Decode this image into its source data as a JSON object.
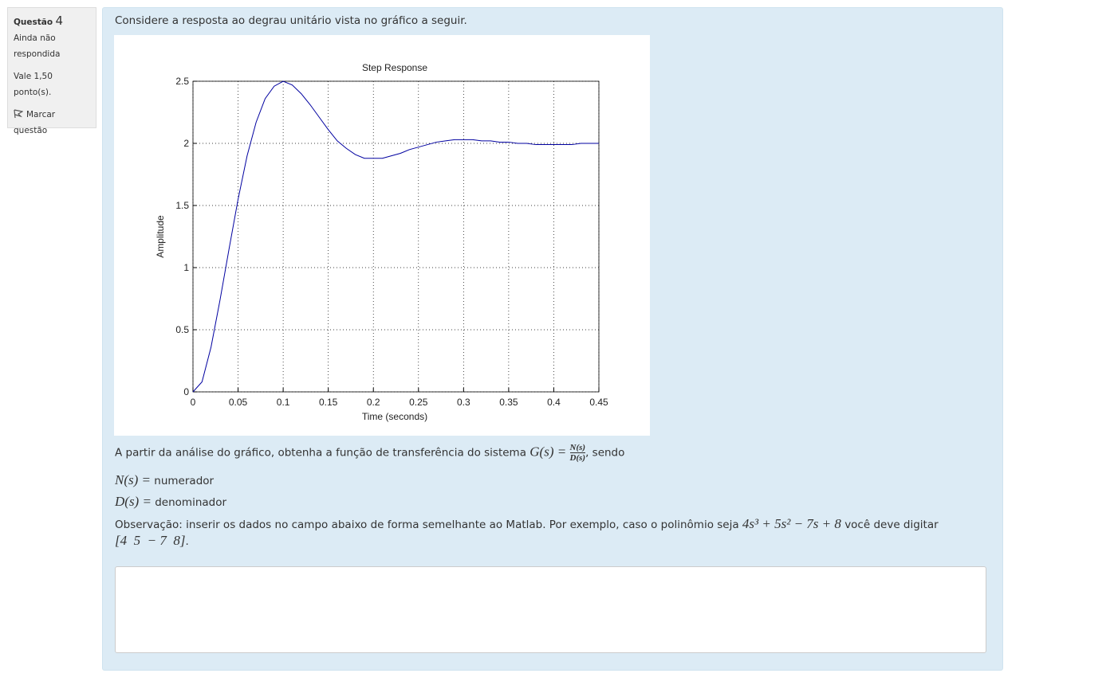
{
  "sidebar": {
    "question_label": "Questão",
    "question_number": "4",
    "status": "Ainda não respondida",
    "points": "Vale 1,50 ponto(s).",
    "flag": "Marcar questão"
  },
  "question": {
    "intro": "Considere a resposta ao degrau unitário vista no gráfico a seguir.",
    "paragraph": {
      "text": "A partir da análise do gráfico, obtenha a função de transferência do sistema",
      "formula_lhs": "G(s) =",
      "numerator": "N(s)",
      "denominator": "D(s)",
      "suffix": ", sendo"
    },
    "definitions": [
      {
        "symbol": "N(s) =",
        "text": "numerador"
      },
      {
        "symbol": "D(s) =",
        "text": "denominador"
      }
    ],
    "note": {
      "text": "Observação: inserir os dados no campo abaixo de forma semelhante ao Matlab. Por exemplo, caso o polinômio seja",
      "polynomial": "4s³ + 5s² − 7s + 8",
      "after": "você deve digitar",
      "example": "[4  5  − 7  8]",
      "end": "."
    }
  },
  "chart_data": {
    "type": "line",
    "title": "Step Response",
    "x_label": "Time (seconds)",
    "y_label": "Amplitude",
    "x": [
      0,
      0.01,
      0.02,
      0.03,
      0.04,
      0.05,
      0.06,
      0.07,
      0.08,
      0.09,
      0.1,
      0.11,
      0.12,
      0.13,
      0.14,
      0.15,
      0.16,
      0.17,
      0.18,
      0.19,
      0.2,
      0.21,
      0.22,
      0.23,
      0.24,
      0.25,
      0.26,
      0.27,
      0.28,
      0.29,
      0.3,
      0.31,
      0.32,
      0.33,
      0.34,
      0.35,
      0.36,
      0.37,
      0.38,
      0.39,
      0.4,
      0.41,
      0.42,
      0.43,
      0.44,
      0.45
    ],
    "values": [
      0,
      0.08,
      0.36,
      0.74,
      1.15,
      1.55,
      1.9,
      2.17,
      2.36,
      2.46,
      2.5,
      2.47,
      2.4,
      2.31,
      2.21,
      2.11,
      2.02,
      1.96,
      1.91,
      1.88,
      1.88,
      1.88,
      1.9,
      1.92,
      1.95,
      1.97,
      1.99,
      2.01,
      2.02,
      2.03,
      2.03,
      2.03,
      2.02,
      2.02,
      2.01,
      2.01,
      2,
      2,
      1.99,
      1.99,
      1.99,
      1.99,
      1.99,
      2,
      2,
      2
    ],
    "color": "#0000a0",
    "xlim": [
      0,
      0.45
    ],
    "ylim": [
      0,
      2.5
    ],
    "xticks": [
      0,
      0.05,
      0.1,
      0.15,
      0.2,
      0.25,
      0.3,
      0.35,
      0.4,
      0.45
    ],
    "yticks": [
      0,
      0.5,
      1,
      1.5,
      2,
      2.5
    ],
    "grid": true
  }
}
